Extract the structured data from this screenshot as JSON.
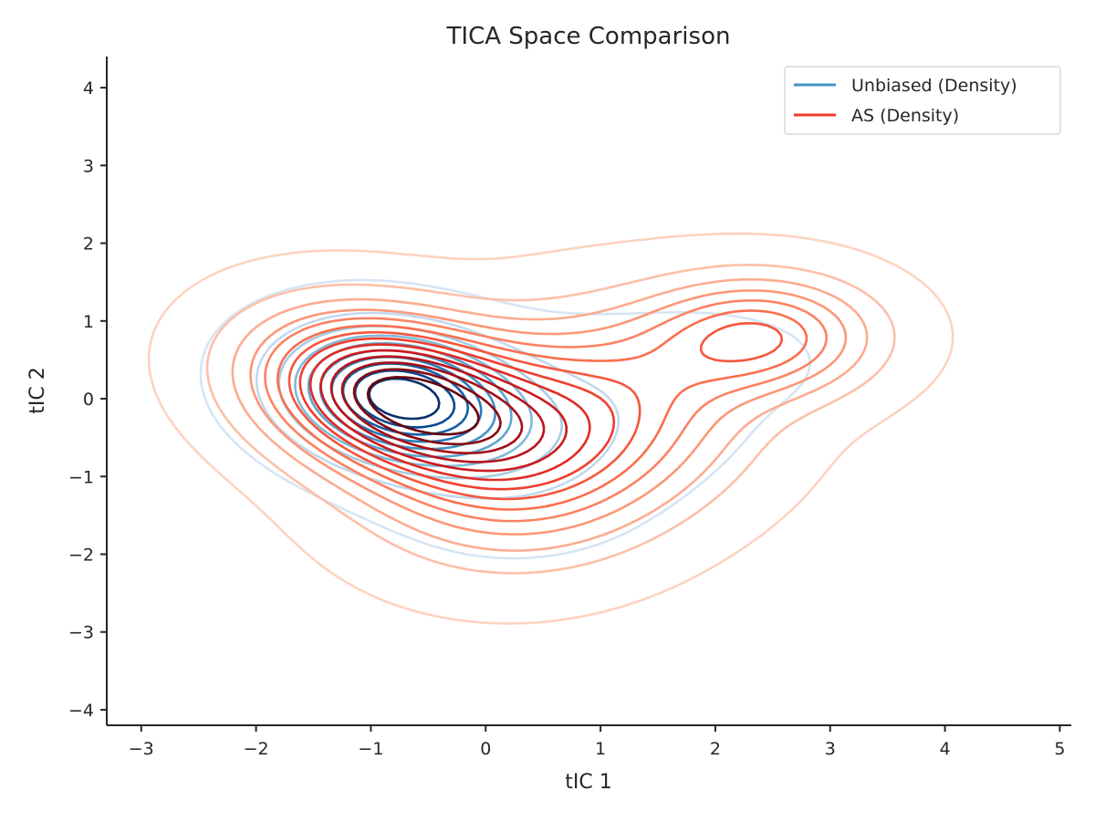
{
  "chart_data": {
    "type": "contour",
    "title": "TICA Space Comparison",
    "xlabel": "tIC 1",
    "ylabel": "tIC 2",
    "xlim": [
      -3.3,
      5.1
    ],
    "ylim": [
      -4.2,
      4.4
    ],
    "xticks": [
      -3,
      -2,
      -1,
      0,
      1,
      2,
      3,
      4,
      5
    ],
    "yticks": [
      -4,
      -3,
      -2,
      -1,
      0,
      1,
      2,
      3,
      4
    ],
    "xtick_labels": [
      "−3",
      "−2",
      "−1",
      "0",
      "1",
      "2",
      "3",
      "4",
      "5"
    ],
    "ytick_labels": [
      "−4",
      "−3",
      "−2",
      "−1",
      "0",
      "1",
      "2",
      "3",
      "4"
    ],
    "grid": false,
    "legend_position": "top-right",
    "series": [
      {
        "name": "Unbiased (Density)",
        "color": "#4292c6",
        "colormap": "Blues",
        "levels": 10,
        "components": [
          {
            "cx": -0.75,
            "cy": 0.02,
            "sx": 0.6,
            "sy": 0.52,
            "rho": -0.2,
            "w": 0.75
          },
          {
            "cx": 0.25,
            "cy": -0.55,
            "sx": 0.7,
            "sy": 0.7,
            "rho": 0.0,
            "w": 0.18
          },
          {
            "cx": 1.2,
            "cy": -0.1,
            "sx": 0.7,
            "sy": 0.6,
            "rho": 0.0,
            "w": 0.05
          },
          {
            "cx": 2.0,
            "cy": 0.5,
            "sx": 0.6,
            "sy": 0.4,
            "rho": 0.0,
            "w": 0.02
          }
        ]
      },
      {
        "name": "AS (Density)",
        "color": "#ef3b2c",
        "colormap": "Reds",
        "levels": 14,
        "components": [
          {
            "cx": -0.8,
            "cy": 0.05,
            "sx": 0.75,
            "sy": 0.65,
            "rho": -0.25,
            "w": 0.42
          },
          {
            "cx": 0.3,
            "cy": -0.7,
            "sx": 0.85,
            "sy": 0.85,
            "rho": 0.05,
            "w": 0.3
          },
          {
            "cx": 1.25,
            "cy": 0.0,
            "sx": 0.8,
            "sy": 0.8,
            "rho": 0.0,
            "w": 0.15
          },
          {
            "cx": 2.4,
            "cy": 0.8,
            "sx": 0.65,
            "sy": 0.5,
            "rho": 0.0,
            "w": 0.13
          }
        ]
      }
    ]
  }
}
